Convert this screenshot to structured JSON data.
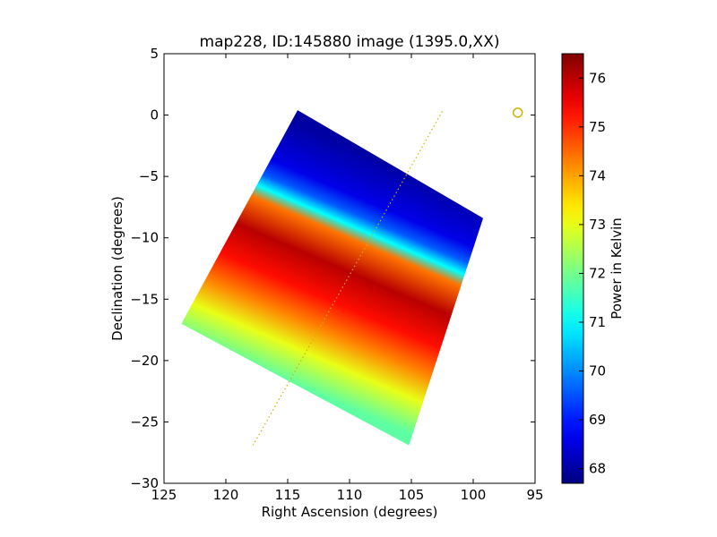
{
  "chart_data": {
    "type": "heatmap",
    "title": "map228, ID:145880 image (1395.0,XX)",
    "xlabel": "Right Ascension (degrees)",
    "ylabel": "Declination (degrees)",
    "xlim": [
      125,
      95
    ],
    "ylim": [
      -30,
      5
    ],
    "xticks": [
      125,
      120,
      115,
      110,
      105,
      100,
      95
    ],
    "yticks": [
      5,
      0,
      -5,
      -10,
      -15,
      -20,
      -25,
      -30
    ],
    "grid": false,
    "footprint_corners": [
      [
        114.2,
        0.4
      ],
      [
        99.2,
        -8.4
      ],
      [
        105.2,
        -26.9
      ],
      [
        123.6,
        -17.0
      ]
    ],
    "galactic_plane_line": [
      [
        102.5,
        0.3
      ],
      [
        117.8,
        -26.9
      ]
    ],
    "source_marker": [
      96.4,
      0.2
    ],
    "temperature_profile": {
      "along": "declination-band (top edge to bottom edge of footprint)",
      "fraction": [
        0.0,
        0.18,
        0.25,
        0.3,
        0.35,
        0.48,
        0.62,
        0.74,
        0.86,
        1.0
      ],
      "values": [
        68.0,
        68.6,
        69.6,
        71.0,
        74.4,
        76.0,
        75.3,
        74.3,
        73.0,
        71.8
      ]
    },
    "colorbar": {
      "label": "Power in Kelvin",
      "min": 67.7,
      "max": 76.5,
      "ticks": [
        68,
        69,
        70,
        71,
        72,
        73,
        74,
        75,
        76
      ],
      "colormap": "jet"
    },
    "colors": {
      "marker": "#c8b400",
      "plane_line": "#c8b400"
    }
  }
}
